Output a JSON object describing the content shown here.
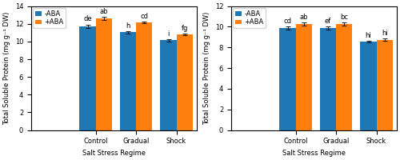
{
  "chart_data": [
    {
      "type": "bar",
      "categories": [
        "Control",
        "Gradual",
        "Shock"
      ],
      "series": [
        {
          "name": "-ABA",
          "values": [
            11.75,
            11.05,
            10.15
          ],
          "errors": [
            0.18,
            0.15,
            0.12
          ],
          "annotations": [
            "de",
            "h",
            "i"
          ]
        },
        {
          "name": "+ABA",
          "values": [
            12.6,
            12.15,
            10.8
          ],
          "errors": [
            0.18,
            0.12,
            0.12
          ],
          "annotations": [
            "ab",
            "cd",
            "fg"
          ]
        }
      ],
      "xlabel": "Salt Stress Regime",
      "ylabel": "Total Soluble Protein (mg g⁻¹ DW)",
      "ylim": [
        0,
        14
      ],
      "yticks": [
        0,
        2,
        4,
        6,
        8,
        10,
        12,
        14
      ],
      "legend": "upper left"
    },
    {
      "type": "bar",
      "categories": [
        "Control",
        "Gradual",
        "Shock"
      ],
      "series": [
        {
          "name": "-ABA",
          "values": [
            9.85,
            9.85,
            8.55
          ],
          "errors": [
            0.15,
            0.15,
            0.1
          ],
          "annotations": [
            "cd",
            "ef",
            "hi"
          ]
        },
        {
          "name": "+ABA",
          "values": [
            10.3,
            10.3,
            8.75
          ],
          "errors": [
            0.15,
            0.15,
            0.1
          ],
          "annotations": [
            "ab",
            "bc",
            "hi"
          ]
        }
      ],
      "xlabel": "Salt Stress Regime",
      "ylabel": "Total Soluble Protein (mg g⁻¹ DW)",
      "ylim": [
        0,
        12
      ],
      "yticks": [
        0,
        2,
        4,
        6,
        8,
        10,
        12
      ],
      "legend": "upper left"
    }
  ]
}
